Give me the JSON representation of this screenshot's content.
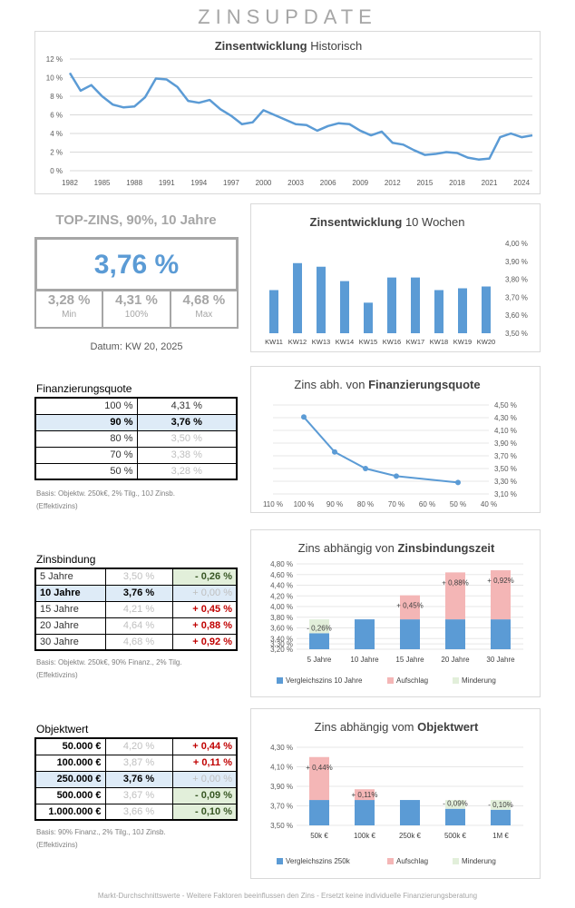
{
  "title": "ZINSUPDATE",
  "top": {
    "label": "TOP-ZINS, 90%, 10 Jahre",
    "value": "3,76 %",
    "stats": [
      {
        "value": "3,28 %",
        "label": "Min"
      },
      {
        "value": "4,31 %",
        "label": "100%"
      },
      {
        "value": "4,68 %",
        "label": "Max"
      }
    ],
    "datum": "Datum: KW 20, 2025"
  },
  "finanz": {
    "heading": "Finanzierungsquote",
    "rows": [
      {
        "q": "100 %",
        "z": "4,31 %"
      },
      {
        "q": "90 %",
        "z": "3,76 %"
      },
      {
        "q": "80 %",
        "z": "3,50 %"
      },
      {
        "q": "70 %",
        "z": "3,38 %"
      },
      {
        "q": "50 %",
        "z": "3,28 %"
      }
    ],
    "note1": "Basis: Objektw. 250k€, 2% Tilg., 10J Zinsb.",
    "note2": "(Effektivzins)"
  },
  "bindung": {
    "heading": "Zinsbindung",
    "rows": [
      {
        "j": "5 Jahre",
        "z": "3,50 %",
        "d": "- 0,26 %"
      },
      {
        "j": "10 Jahre",
        "z": "3,76 %",
        "d": "+ 0,00 %"
      },
      {
        "j": "15 Jahre",
        "z": "4,21 %",
        "d": "+ 0,45 %"
      },
      {
        "j": "20 Jahre",
        "z": "4,64 %",
        "d": "+ 0,88 %"
      },
      {
        "j": "30 Jahre",
        "z": "4,68 %",
        "d": "+ 0,92 %"
      }
    ],
    "note1": "Basis: Objektw. 250k€, 90% Finanz., 2% Tilg.",
    "note2": "(Effektivzins)"
  },
  "objekt": {
    "heading": "Objektwert",
    "rows": [
      {
        "w": "50.000 €",
        "z": "4,20 %",
        "d": "+ 0,44 %"
      },
      {
        "w": "100.000 €",
        "z": "3,87 %",
        "d": "+ 0,11 %"
      },
      {
        "w": "250.000 €",
        "z": "3,76 %",
        "d": "+ 0,00 %"
      },
      {
        "w": "500.000 €",
        "z": "3,67 %",
        "d": "- 0,09 %"
      },
      {
        "w": "1.000.000 €",
        "z": "3,66 %",
        "d": "- 0,10 %"
      }
    ],
    "note1": "Basis: 90% Finanz., 2% Tilg., 10J Zinsb.",
    "note2": "(Effektivzins)"
  },
  "footer": "Markt-Durchschnittswerte - Weitere Faktoren beeinflussen den Zins - Ersetzt keine individuelle Finanzierungsberatung",
  "colors": {
    "blue": "#5b9bd5",
    "pink": "#f4b6b6",
    "green": "#e2efda"
  },
  "chart_data": [
    {
      "type": "line",
      "title_bold": "Zinsentwicklung",
      "title_rest": " Historisch",
      "x": [
        1982,
        1983,
        1984,
        1985,
        1986,
        1987,
        1988,
        1989,
        1990,
        1991,
        1992,
        1993,
        1994,
        1995,
        1996,
        1997,
        1998,
        1999,
        2000,
        2001,
        2002,
        2003,
        2004,
        2005,
        2006,
        2007,
        2008,
        2009,
        2010,
        2011,
        2012,
        2013,
        2014,
        2015,
        2016,
        2017,
        2018,
        2019,
        2020,
        2021,
        2022,
        2023,
        2024,
        2025
      ],
      "values": [
        10.5,
        8.6,
        9.2,
        8.0,
        7.1,
        6.8,
        6.9,
        7.9,
        9.9,
        9.8,
        9.0,
        7.5,
        7.3,
        7.6,
        6.6,
        5.9,
        5.0,
        5.2,
        6.5,
        6.0,
        5.5,
        5.0,
        4.9,
        4.3,
        4.8,
        5.1,
        5.0,
        4.3,
        3.8,
        4.2,
        3.0,
        2.8,
        2.2,
        1.7,
        1.8,
        2.0,
        1.9,
        1.4,
        1.2,
        1.3,
        3.6,
        4.0,
        3.6,
        3.8
      ],
      "ylim": [
        0,
        12
      ],
      "yticks": [
        "0 %",
        "2 %",
        "4 %",
        "6 %",
        "8 %",
        "10 %",
        "12 %"
      ],
      "xticks": [
        "1982",
        "1985",
        "1988",
        "1991",
        "1994",
        "1997",
        "2000",
        "2003",
        "2006",
        "2009",
        "2012",
        "2015",
        "2018",
        "2021",
        "2024"
      ]
    },
    {
      "type": "bar",
      "title_bold": "Zinsentwicklung",
      "title_rest": "  10 Wochen",
      "categories": [
        "KW11",
        "KW12",
        "KW13",
        "KW14",
        "KW15",
        "KW16",
        "KW17",
        "KW18",
        "KW19",
        "KW20"
      ],
      "values": [
        3.74,
        3.89,
        3.87,
        3.79,
        3.67,
        3.81,
        3.81,
        3.74,
        3.75,
        3.76
      ],
      "ylim": [
        3.5,
        4.0
      ],
      "yticks": [
        "3,50 %",
        "3,60 %",
        "3,70 %",
        "3,80 %",
        "3,90 %",
        "4,00 %"
      ]
    },
    {
      "type": "line",
      "title_rest": "Zins abh. von ",
      "title_bold": "Finanzierungsquote",
      "x": [
        100,
        90,
        80,
        70,
        50
      ],
      "values": [
        4.31,
        3.76,
        3.5,
        3.38,
        3.28
      ],
      "xticks": [
        "110 %",
        "100 %",
        "90 %",
        "80 %",
        "70 %",
        "60 %",
        "50 %",
        "40 %"
      ],
      "ylim": [
        3.1,
        4.5
      ],
      "yticks": [
        "3,10 %",
        "3,30 %",
        "3,50 %",
        "3,70 %",
        "3,90 %",
        "4,10 %",
        "4,30 %",
        "4,50 %"
      ]
    },
    {
      "type": "bar",
      "title_rest": "Zins abhängig von ",
      "title_bold": "Zinsbindungszeit",
      "categories": [
        "5 Jahre",
        "10 Jahre",
        "15 Jahre",
        "20 Jahre",
        "30 Jahre"
      ],
      "base": [
        3.5,
        3.76,
        3.76,
        3.76,
        3.76
      ],
      "aufschlag": [
        0,
        0,
        0.45,
        0.88,
        0.92
      ],
      "minderung": [
        0.26,
        0,
        0,
        0,
        0
      ],
      "labels": [
        "- 0,26%",
        "",
        "+ 0,45%",
        "+ 0,88%",
        "+ 0,92%"
      ],
      "ylim": [
        3.2,
        4.8
      ],
      "yticks": [
        "3,20 %",
        "3,30 %",
        "3,40 %",
        "3,60 %",
        "3,80 %",
        "4,00 %",
        "4,20 %",
        "4,40 %",
        "4,60 %",
        "4,80 %"
      ],
      "legend": [
        "Vergleichszins 10 Jahre",
        "Aufschlag",
        "Minderung"
      ]
    },
    {
      "type": "bar",
      "title_rest": "Zins abhängig vom ",
      "title_bold": "Objektwert",
      "categories": [
        "50k €",
        "100k €",
        "250k €",
        "500k €",
        "1M €"
      ],
      "base": [
        3.76,
        3.76,
        3.76,
        3.67,
        3.66
      ],
      "aufschlag": [
        0.44,
        0.11,
        0,
        0,
        0
      ],
      "minderung": [
        0,
        0,
        0,
        0.09,
        0.1
      ],
      "labels": [
        "+ 0,44%",
        "+ 0,11%",
        "",
        "- 0,09%",
        "- 0,10%"
      ],
      "ylim": [
        3.5,
        4.3
      ],
      "yticks": [
        "3,50 %",
        "3,70 %",
        "3,90 %",
        "4,10 %",
        "4,30 %"
      ],
      "legend": [
        "Vergleichszins 250k",
        "Aufschlag",
        "Minderung"
      ]
    }
  ]
}
